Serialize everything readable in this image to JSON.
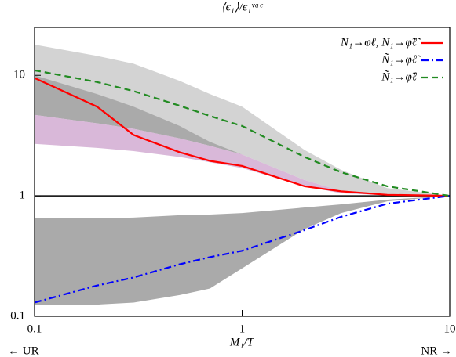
{
  "chart_data": {
    "type": "line",
    "title": "⟨ϵ₁⟩/ϵ₁ᵛᵃᶜ",
    "x_label": "M₁/T",
    "annotations": [
      "← UR",
      "NR →"
    ],
    "xscale": "log",
    "yscale": "log",
    "xlim": [
      0.1,
      10
    ],
    "ylim": [
      0.1,
      25
    ],
    "xticks": [
      0.1,
      1,
      10
    ],
    "yticks": [
      0.1,
      1,
      10
    ],
    "legend": "upper right",
    "x": [
      0.1,
      0.2,
      0.3,
      0.5,
      0.7,
      1,
      2,
      3,
      5,
      10
    ],
    "bands": [
      {
        "color": "#d3d3d3",
        "upper": [
          18,
          14.5,
          12.5,
          9,
          7,
          5.5,
          2.4,
          1.64,
          1.16,
          1
        ],
        "lower": [
          4.7,
          4.0,
          3.6,
          3.0,
          2.6,
          2.2,
          1.35,
          1.1,
          1.02,
          1
        ]
      },
      {
        "color": "#aaaaaa",
        "upper": [
          10,
          7,
          5.5,
          3.8,
          2.8,
          2.2,
          1.35,
          1.1,
          1.02,
          1
        ],
        "lower": [
          4.7,
          4.0,
          3.6,
          3.0,
          2.6,
          2.2,
          1.35,
          1.1,
          1.02,
          1
        ]
      },
      {
        "color": "#d9b8d9",
        "upper": [
          4.7,
          4.0,
          3.6,
          3.0,
          2.6,
          2.2,
          1.35,
          1.1,
          1.02,
          1
        ],
        "lower": [
          2.7,
          2.5,
          2.35,
          2.1,
          1.9,
          1.7,
          1.2,
          1.05,
          1.01,
          1
        ]
      },
      {
        "color": "#aaaaaa",
        "upper": [
          0.65,
          0.65,
          0.66,
          0.69,
          0.7,
          0.72,
          0.8,
          0.85,
          0.93,
          1
        ],
        "lower": [
          0.125,
          0.125,
          0.13,
          0.15,
          0.17,
          0.25,
          0.53,
          0.72,
          0.9,
          1
        ]
      }
    ],
    "series": [
      {
        "name": "N₁→φℓ, N₁→φ̃ℓ̃",
        "color": "#ff0000",
        "dash": "solid",
        "values": [
          9.5,
          5.5,
          3.2,
          2.3,
          1.95,
          1.77,
          1.2,
          1.09,
          1.02,
          1
        ]
      },
      {
        "name": "Ñ₁→φℓ̃",
        "color": "#0000ff",
        "dash": "dashdot",
        "values": [
          0.13,
          0.18,
          0.21,
          0.27,
          0.31,
          0.35,
          0.52,
          0.67,
          0.86,
          1
        ]
      },
      {
        "name": "Ñ₁→φ̃ℓ",
        "color": "#228b22",
        "dash": "dashed",
        "values": [
          11,
          8.8,
          7.4,
          5.6,
          4.6,
          3.8,
          2.1,
          1.57,
          1.2,
          1
        ]
      }
    ]
  }
}
